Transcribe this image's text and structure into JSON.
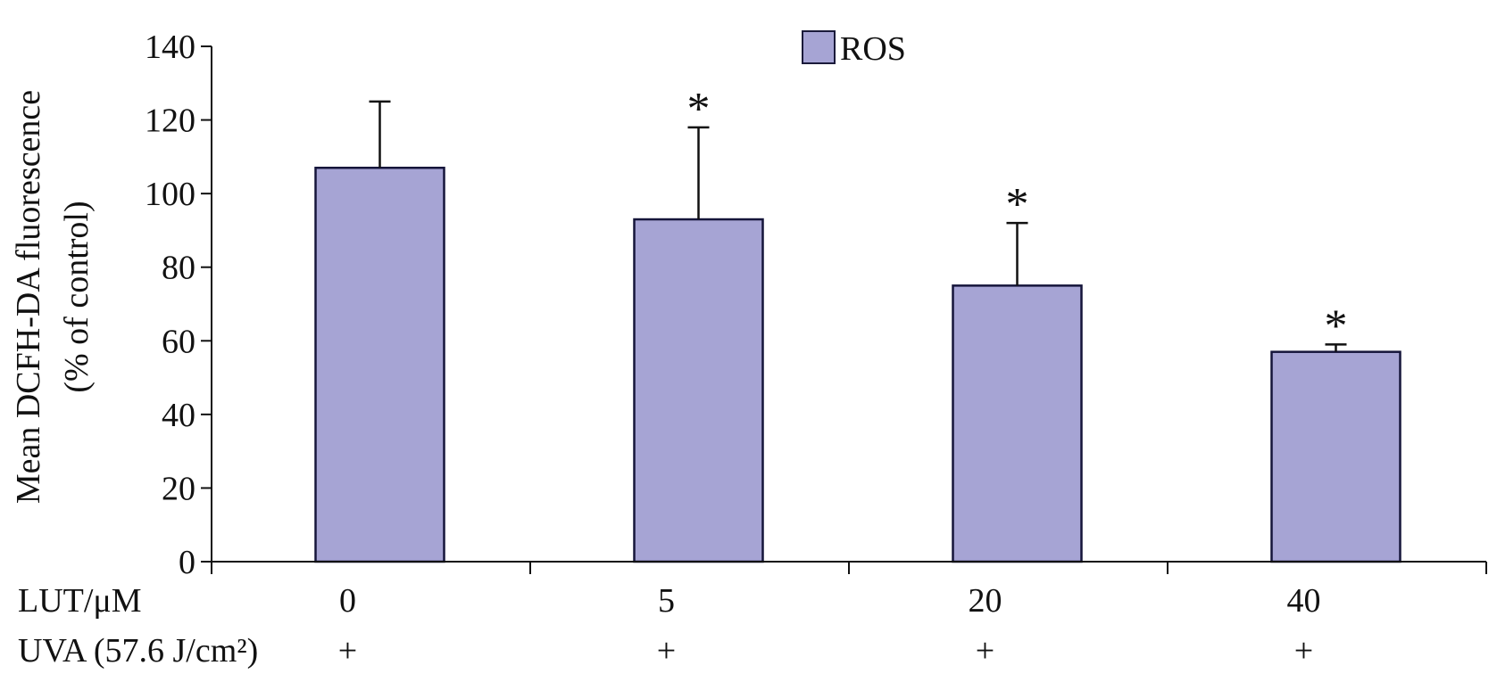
{
  "chart_data": {
    "type": "bar",
    "categories": [
      "0",
      "5",
      "20",
      "40"
    ],
    "series": [
      {
        "name": "ROS",
        "values": [
          107,
          93,
          75,
          57
        ],
        "errors": [
          18,
          25,
          17,
          2
        ],
        "significance": [
          "",
          "*",
          "*",
          "*"
        ]
      }
    ],
    "ylabel_line1": "Mean DCFH-DA fluorescence",
    "ylabel_line2": "(% of control)",
    "ylim": [
      0,
      140
    ],
    "yticks": [
      "0",
      "20",
      "40",
      "60",
      "80",
      "100",
      "120",
      "140"
    ],
    "legend_position": "top-center",
    "grid": false,
    "bar_color": "#a6a4d4",
    "x_rows": [
      {
        "label": "LUT/μM",
        "values": [
          "0",
          "5",
          "20",
          "40"
        ]
      },
      {
        "label": "UVA (57.6 J/cm²)",
        "values": [
          "+",
          "+",
          "+",
          "+"
        ]
      }
    ]
  }
}
